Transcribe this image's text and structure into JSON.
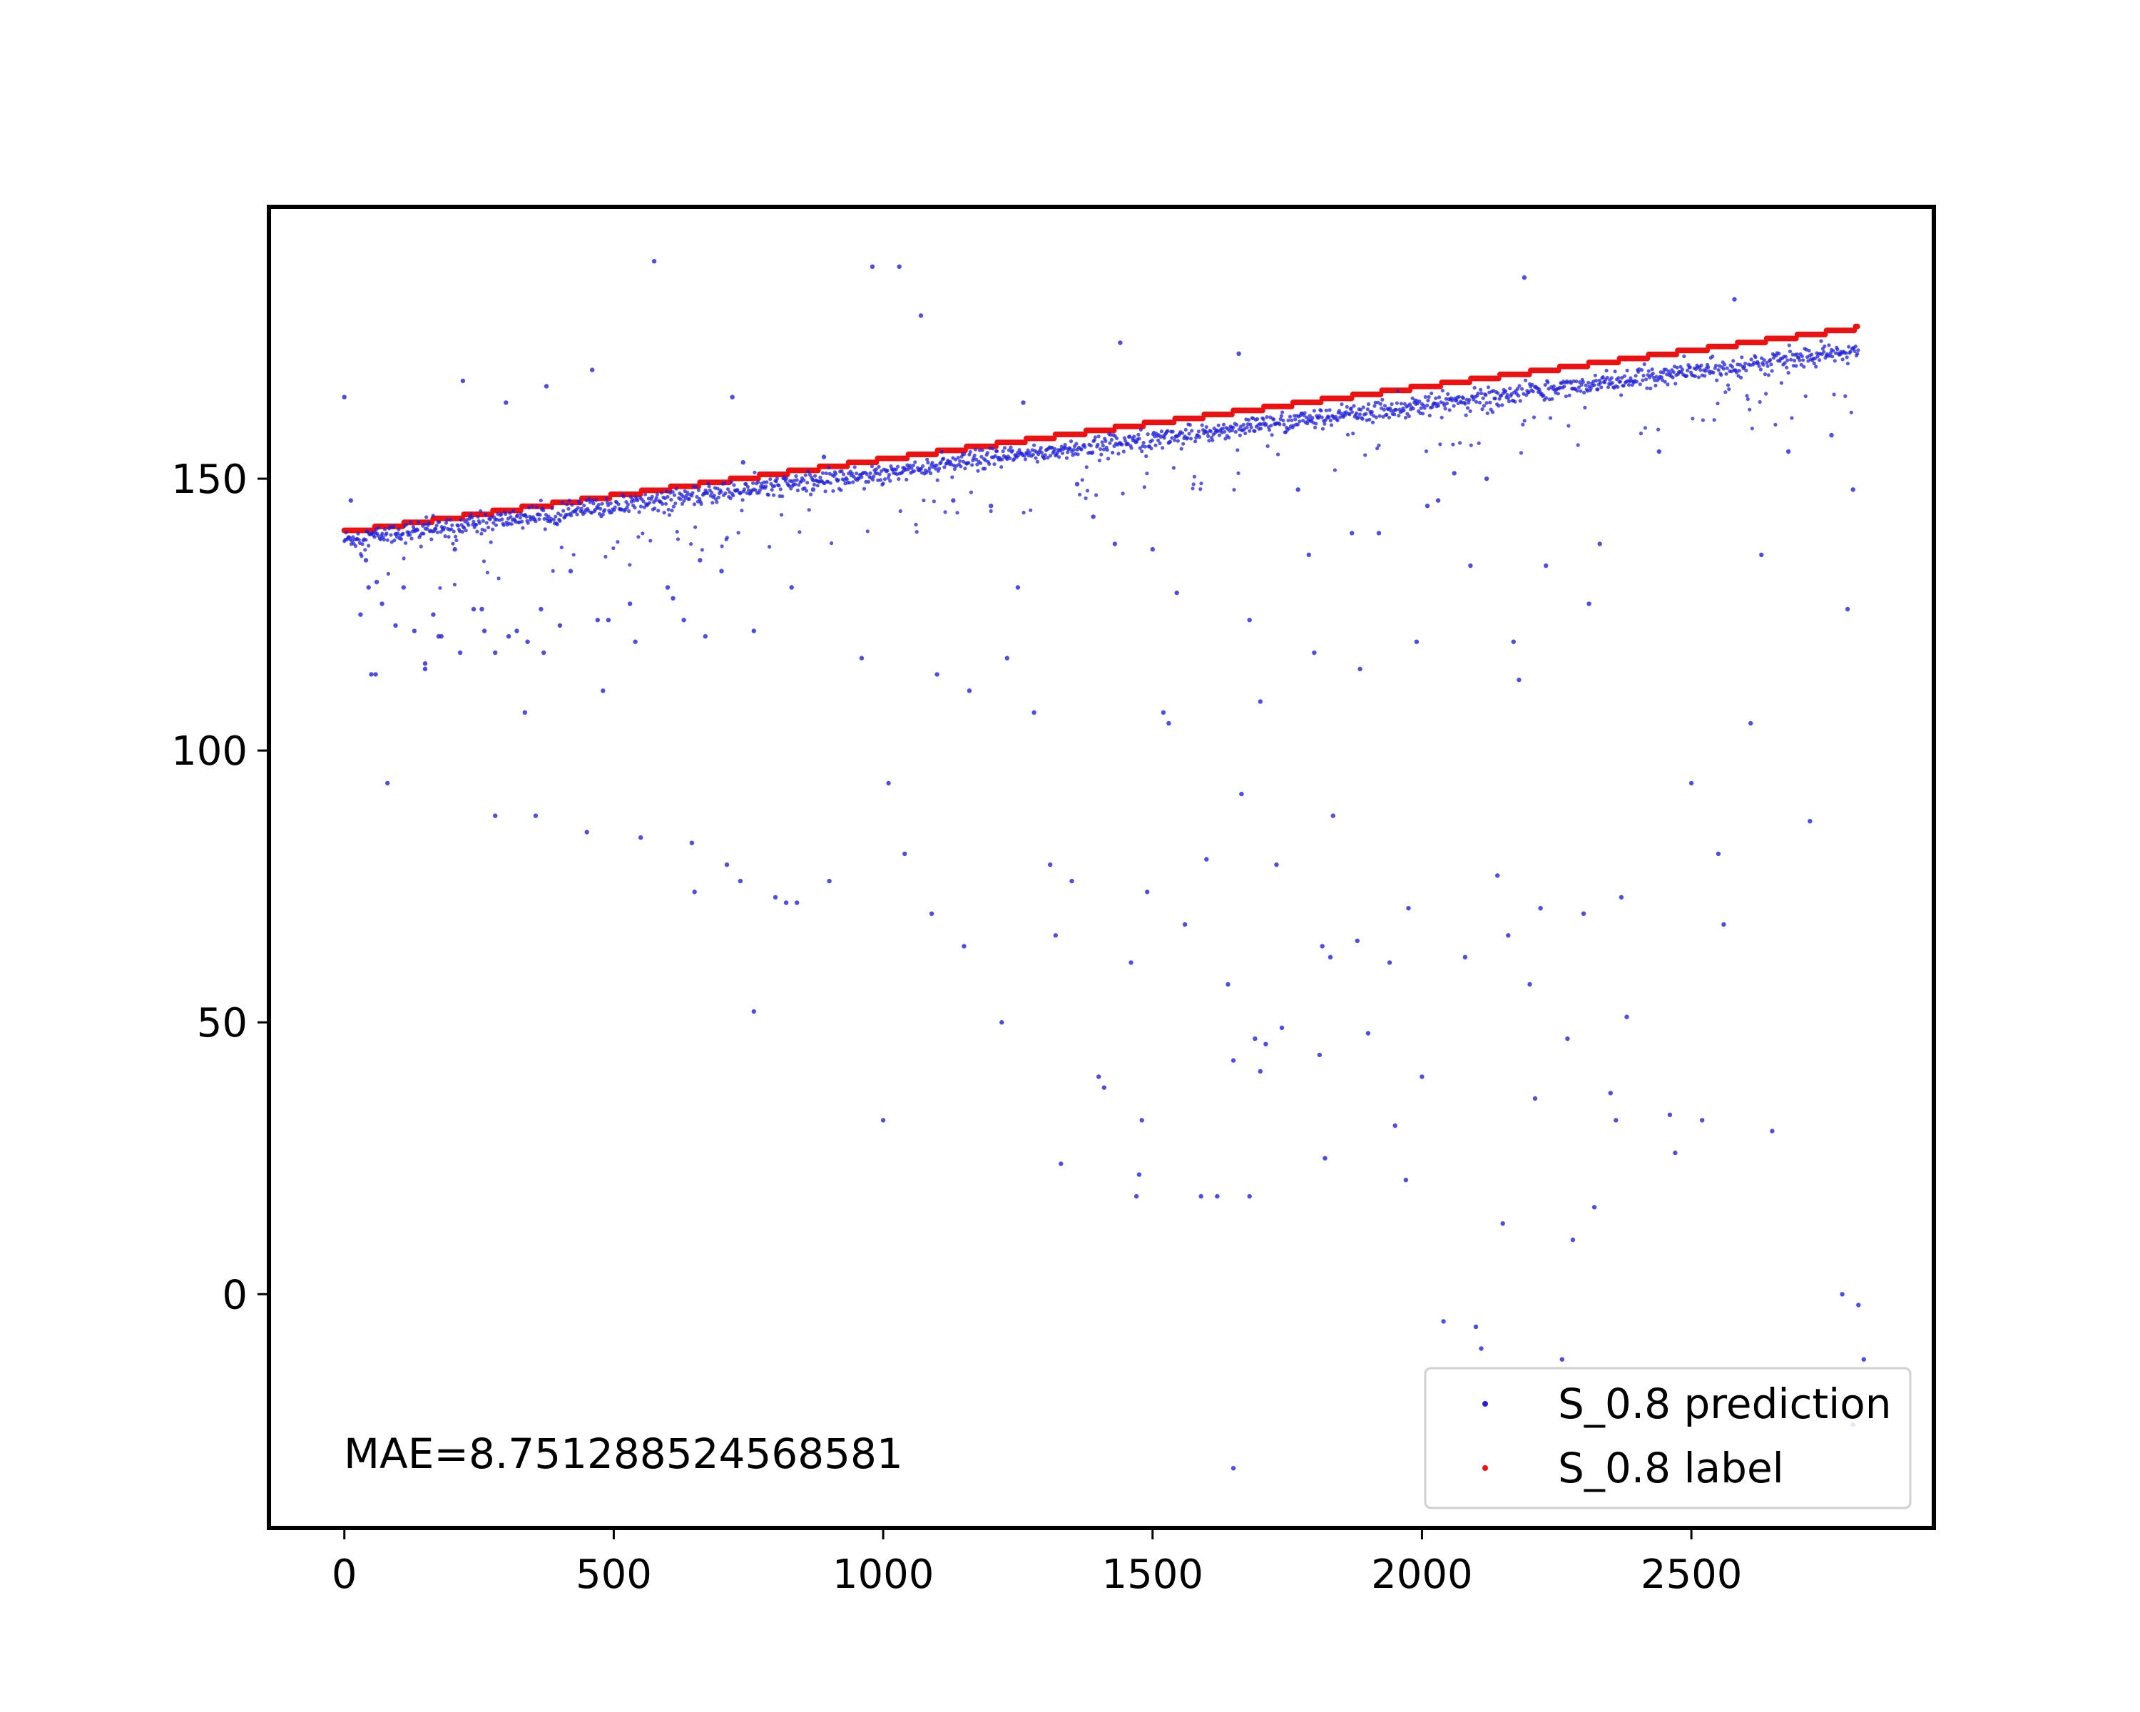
{
  "chart_data": {
    "type": "scatter",
    "title": "",
    "xlabel": "",
    "ylabel": "",
    "xlim": [
      -140,
      2950
    ],
    "ylim": [
      -43,
      200
    ],
    "xticks": [
      0,
      500,
      1000,
      1500,
      2000,
      2500
    ],
    "yticks": [
      0,
      50,
      100,
      150
    ],
    "grid": false,
    "legend": {
      "placement": "lower-right",
      "entries": [
        {
          "label": "S_0.8 prediction",
          "color": "#2222dd"
        },
        {
          "label": "S_0.8 label",
          "color": "#ee1111"
        }
      ]
    },
    "annotation": "MAE=8.751288524568581",
    "label_series": {
      "name": "S_0.8 label",
      "color": "#ee1111",
      "x_start": 0,
      "x_end": 2810,
      "y_start": 140.5,
      "y_end": 178.0,
      "step_width": 55
    },
    "prediction_series": {
      "name": "S_0.8 prediction",
      "color": "#2222dd",
      "outliers": [
        [
          0,
          165
        ],
        [
          12,
          146
        ],
        [
          30,
          125
        ],
        [
          40,
          135
        ],
        [
          45,
          130
        ],
        [
          50,
          114
        ],
        [
          58,
          114
        ],
        [
          60,
          131
        ],
        [
          70,
          127
        ],
        [
          80,
          94
        ],
        [
          95,
          123
        ],
        [
          110,
          130
        ],
        [
          130,
          122
        ],
        [
          150,
          116
        ],
        [
          150,
          115
        ],
        [
          165,
          125
        ],
        [
          175,
          121
        ],
        [
          180,
          121
        ],
        [
          205,
          137
        ],
        [
          215,
          118
        ],
        [
          220,
          168
        ],
        [
          240,
          126
        ],
        [
          255,
          126
        ],
        [
          260,
          122
        ],
        [
          280,
          118
        ],
        [
          280,
          88
        ],
        [
          300,
          164
        ],
        [
          305,
          121
        ],
        [
          320,
          122
        ],
        [
          335,
          107
        ],
        [
          340,
          120
        ],
        [
          355,
          88
        ],
        [
          365,
          126
        ],
        [
          370,
          118
        ],
        [
          375,
          167
        ],
        [
          400,
          123
        ],
        [
          420,
          133
        ],
        [
          450,
          85
        ],
        [
          460,
          170
        ],
        [
          470,
          124
        ],
        [
          480,
          111
        ],
        [
          490,
          124
        ],
        [
          530,
          127
        ],
        [
          540,
          120
        ],
        [
          550,
          84
        ],
        [
          575,
          190
        ],
        [
          600,
          130
        ],
        [
          610,
          128
        ],
        [
          630,
          124
        ],
        [
          645,
          83
        ],
        [
          650,
          74
        ],
        [
          660,
          135
        ],
        [
          670,
          121
        ],
        [
          700,
          133
        ],
        [
          710,
          79
        ],
        [
          720,
          165
        ],
        [
          735,
          76
        ],
        [
          740,
          153
        ],
        [
          760,
          122
        ],
        [
          760,
          52
        ],
        [
          800,
          73
        ],
        [
          820,
          72
        ],
        [
          830,
          130
        ],
        [
          840,
          72
        ],
        [
          870,
          148
        ],
        [
          890,
          154
        ],
        [
          900,
          76
        ],
        [
          960,
          117
        ],
        [
          980,
          189
        ],
        [
          1000,
          32
        ],
        [
          1010,
          94
        ],
        [
          1030,
          189
        ],
        [
          1040,
          81
        ],
        [
          1070,
          180
        ],
        [
          1090,
          70
        ],
        [
          1100,
          114
        ],
        [
          1130,
          146
        ],
        [
          1150,
          64
        ],
        [
          1160,
          111
        ],
        [
          1200,
          145
        ],
        [
          1220,
          50
        ],
        [
          1230,
          117
        ],
        [
          1250,
          130
        ],
        [
          1260,
          164
        ],
        [
          1280,
          107
        ],
        [
          1310,
          79
        ],
        [
          1320,
          66
        ],
        [
          1330,
          24
        ],
        [
          1350,
          76
        ],
        [
          1360,
          149
        ],
        [
          1390,
          143
        ],
        [
          1400,
          40
        ],
        [
          1410,
          38
        ],
        [
          1430,
          138
        ],
        [
          1440,
          175
        ],
        [
          1460,
          61
        ],
        [
          1470,
          18
        ],
        [
          1475,
          22
        ],
        [
          1480,
          32
        ],
        [
          1490,
          74
        ],
        [
          1500,
          137
        ],
        [
          1520,
          107
        ],
        [
          1530,
          105
        ],
        [
          1545,
          129
        ],
        [
          1560,
          68
        ],
        [
          1590,
          18
        ],
        [
          1600,
          80
        ],
        [
          1620,
          18
        ],
        [
          1640,
          57
        ],
        [
          1650,
          43
        ],
        [
          1660,
          173
        ],
        [
          1665,
          92
        ],
        [
          1680,
          124
        ],
        [
          1680,
          18
        ],
        [
          1690,
          47
        ],
        [
          1700,
          109
        ],
        [
          1700,
          41
        ],
        [
          1710,
          46
        ],
        [
          1730,
          79
        ],
        [
          1740,
          49
        ],
        [
          1770,
          148
        ],
        [
          1790,
          136
        ],
        [
          1800,
          118
        ],
        [
          1810,
          44
        ],
        [
          1815,
          64
        ],
        [
          1820,
          25
        ],
        [
          1830,
          62
        ],
        [
          1835,
          88
        ],
        [
          1870,
          140
        ],
        [
          1880,
          65
        ],
        [
          1885,
          115
        ],
        [
          1900,
          48
        ],
        [
          1920,
          140
        ],
        [
          1940,
          61
        ],
        [
          1950,
          31
        ],
        [
          1970,
          21
        ],
        [
          1975,
          71
        ],
        [
          1990,
          120
        ],
        [
          2000,
          40
        ],
        [
          2010,
          145
        ],
        [
          2030,
          146
        ],
        [
          2040,
          -5
        ],
        [
          2060,
          151
        ],
        [
          2080,
          62
        ],
        [
          2090,
          134
        ],
        [
          2100,
          -6
        ],
        [
          2110,
          -10
        ],
        [
          2120,
          150
        ],
        [
          2140,
          77
        ],
        [
          2150,
          13
        ],
        [
          2160,
          66
        ],
        [
          2170,
          120
        ],
        [
          2180,
          113
        ],
        [
          2190,
          187
        ],
        [
          2200,
          57
        ],
        [
          2210,
          36
        ],
        [
          2220,
          71
        ],
        [
          2230,
          134
        ],
        [
          2260,
          -12
        ],
        [
          2270,
          47
        ],
        [
          2280,
          10
        ],
        [
          2300,
          70
        ],
        [
          2310,
          127
        ],
        [
          2320,
          16
        ],
        [
          2330,
          138
        ],
        [
          2350,
          37
        ],
        [
          2360,
          32
        ],
        [
          2370,
          73
        ],
        [
          2380,
          51
        ],
        [
          2440,
          155
        ],
        [
          2460,
          33
        ],
        [
          2470,
          26
        ],
        [
          2500,
          94
        ],
        [
          2520,
          32
        ],
        [
          2550,
          81
        ],
        [
          2560,
          68
        ],
        [
          2580,
          183
        ],
        [
          2610,
          105
        ],
        [
          2630,
          136
        ],
        [
          2650,
          30
        ],
        [
          2680,
          155
        ],
        [
          2720,
          87
        ],
        [
          2760,
          158
        ],
        [
          2780,
          0
        ],
        [
          2790,
          126
        ],
        [
          2800,
          148
        ],
        [
          2810,
          -2
        ],
        [
          2820,
          -12
        ],
        [
          1650,
          -32
        ],
        [
          2800,
          -24
        ]
      ]
    }
  }
}
